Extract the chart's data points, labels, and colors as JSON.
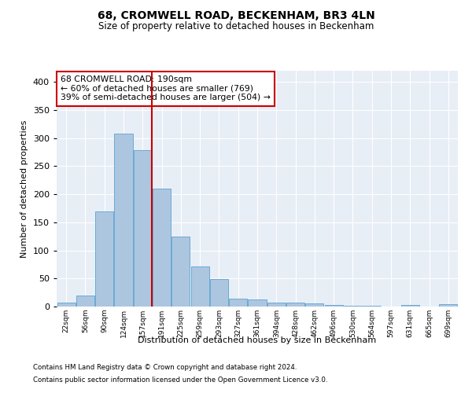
{
  "title1": "68, CROMWELL ROAD, BECKENHAM, BR3 4LN",
  "title2": "Size of property relative to detached houses in Beckenham",
  "xlabel": "Distribution of detached houses by size in Beckenham",
  "ylabel": "Number of detached properties",
  "bar_labels": [
    "22sqm",
    "56sqm",
    "90sqm",
    "124sqm",
    "157sqm",
    "191sqm",
    "225sqm",
    "259sqm",
    "293sqm",
    "327sqm",
    "361sqm",
    "394sqm",
    "428sqm",
    "462sqm",
    "496sqm",
    "530sqm",
    "564sqm",
    "597sqm",
    "631sqm",
    "665sqm",
    "699sqm"
  ],
  "bar_heights": [
    7,
    20,
    170,
    308,
    278,
    210,
    125,
    72,
    49,
    14,
    12,
    7,
    7,
    5,
    3,
    2,
    1,
    0,
    3,
    0,
    4
  ],
  "bar_color": "#adc6e0",
  "bar_edge_color": "#6aaad4",
  "annotation_title": "68 CROMWELL ROAD: 190sqm",
  "annotation_line1": "← 60% of detached houses are smaller (769)",
  "annotation_line2": "39% of semi-detached houses are larger (504) →",
  "vline_color": "#cc0000",
  "annotation_box_color": "#ffffff",
  "annotation_box_edge": "#cc0000",
  "ylim": [
    0,
    420
  ],
  "yticks": [
    0,
    50,
    100,
    150,
    200,
    250,
    300,
    350,
    400
  ],
  "bg_color": "#e8eef6",
  "grid_color": "#ffffff",
  "footnote1": "Contains HM Land Registry data © Crown copyright and database right 2024.",
  "footnote2": "Contains public sector information licensed under the Open Government Licence v3.0."
}
